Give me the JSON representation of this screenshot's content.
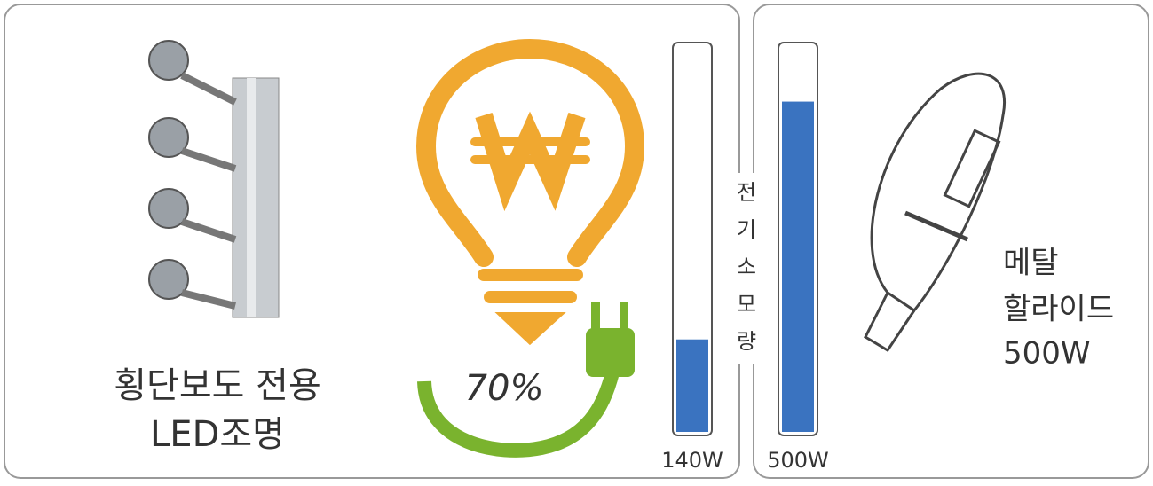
{
  "left_title": [
    "횡단보도 전용",
    "LED조명"
  ],
  "savings": "70%",
  "chart_data": {
    "type": "bar",
    "axis_label": [
      "전",
      "기",
      "소",
      "모",
      "량"
    ],
    "categories": [
      null,
      null
    ],
    "values": [
      140,
      500
    ],
    "value_labels": [
      "140W",
      "500W"
    ],
    "color": "#3a73c0",
    "ylim": [
      0,
      584
    ]
  },
  "right_title": [
    "메탈",
    "할라이드",
    "500W"
  ]
}
